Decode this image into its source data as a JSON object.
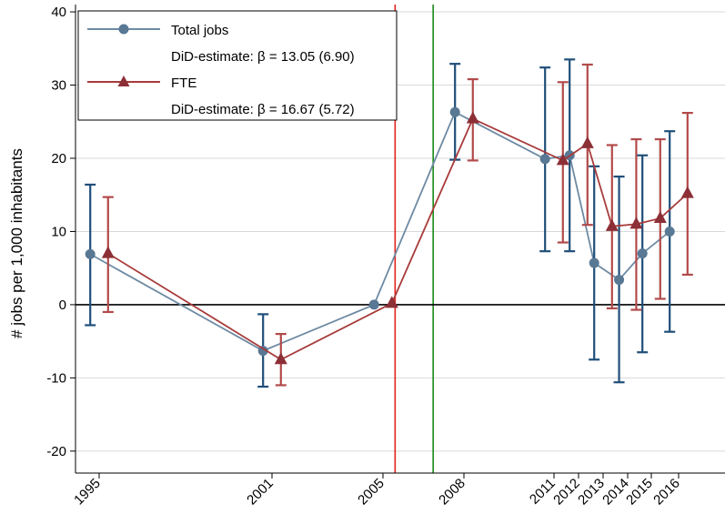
{
  "chart_data": {
    "type": "line",
    "ylabel": "# jobs per 1,000 inhabitants",
    "xlabel": "",
    "ylim": [
      -23,
      41
    ],
    "yticks": [
      -20,
      -10,
      0,
      10,
      20,
      30,
      40
    ],
    "ytick_labels": [
      "-20",
      "-10",
      "0",
      "10",
      "20",
      "30",
      "40"
    ],
    "categories": [
      "1995",
      "2001",
      "2005",
      "2008",
      "2011",
      "2012",
      "2013",
      "2014",
      "2015",
      "2016"
    ],
    "grid": true,
    "legend_position": "top-left",
    "vlines": [
      {
        "between": [
          "2005",
          "2008"
        ],
        "fraction": 0.15,
        "color": "#e0201a"
      },
      {
        "between": [
          "2005",
          "2008"
        ],
        "fraction": 0.62,
        "color": "#1a8a1a"
      }
    ],
    "series": [
      {
        "name": "Total jobs",
        "marker": "circle",
        "line_color": "#6d8aa3",
        "marker_color": "#587894",
        "bar_color": "#1f4e79",
        "offset": -0.22,
        "values": [
          6.9,
          -6.3,
          0,
          26.3,
          19.9,
          20.4,
          5.7,
          3.4,
          7.0,
          10.0
        ],
        "ci_low": [
          -2.8,
          -11.2,
          null,
          19.8,
          7.3,
          7.3,
          -7.5,
          -10.6,
          -6.5,
          -3.7
        ],
        "ci_high": [
          16.4,
          -1.3,
          null,
          32.9,
          32.4,
          33.5,
          18.9,
          17.5,
          20.4,
          23.7
        ],
        "estimate_label": "DiD-estimate: β = 13.05 (6.90)"
      },
      {
        "name": "FTE",
        "marker": "triangle",
        "line_color": "#a83a3a",
        "marker_color": "#8c2f36",
        "bar_color": "#b24a4a",
        "offset": 0.22,
        "values": [
          7.0,
          -7.5,
          0.2,
          25.4,
          19.7,
          22.0,
          10.7,
          11.0,
          11.8,
          15.2
        ],
        "ci_low": [
          -1.0,
          -11.0,
          null,
          19.7,
          8.5,
          10.9,
          -0.5,
          -0.7,
          0.8,
          4.1
        ],
        "ci_high": [
          14.7,
          -4.0,
          null,
          30.8,
          30.4,
          32.8,
          21.8,
          22.6,
          22.6,
          26.2
        ],
        "estimate_label": "DiD-estimate: β = 16.67 (5.72)"
      }
    ]
  }
}
